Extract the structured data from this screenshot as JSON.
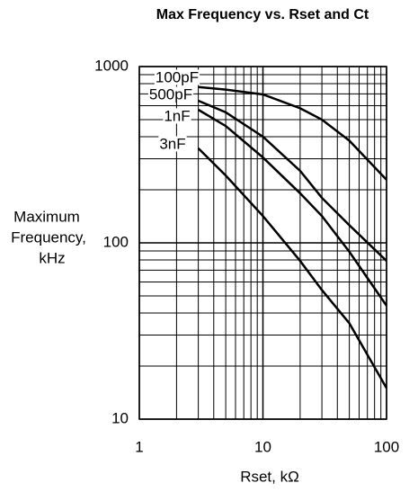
{
  "chart_data": {
    "type": "line",
    "title": "Max Frequency vs. Rset and Ct",
    "y_label": [
      "Maximum",
      "Frequency,",
      "kHz"
    ],
    "x_label": "Rset, kΩ",
    "x": [
      3,
      5,
      10,
      20,
      30,
      50,
      100
    ],
    "series": [
      {
        "name": "100pF",
        "color": "#000000",
        "values": [
          765,
          740,
          695,
          580,
          500,
          380,
          228
        ]
      },
      {
        "name": "500pF",
        "color": "#000000",
        "values": [
          640,
          550,
          400,
          256,
          180,
          126,
          79
        ]
      },
      {
        "name": "1nF",
        "color": "#000000",
        "values": [
          569,
          460,
          305,
          191,
          142,
          89,
          44
        ]
      },
      {
        "name": "3nF",
        "color": "#000000",
        "values": [
          344,
          241,
          142,
          79,
          54,
          35,
          15
        ]
      }
    ],
    "xlim": [
      1,
      100
    ],
    "ylim": [
      10,
      1000
    ],
    "xticks": [
      1,
      10,
      100
    ],
    "yticks": [
      10,
      100,
      1000
    ],
    "log_x": true,
    "log_y": true,
    "grid": true
  }
}
